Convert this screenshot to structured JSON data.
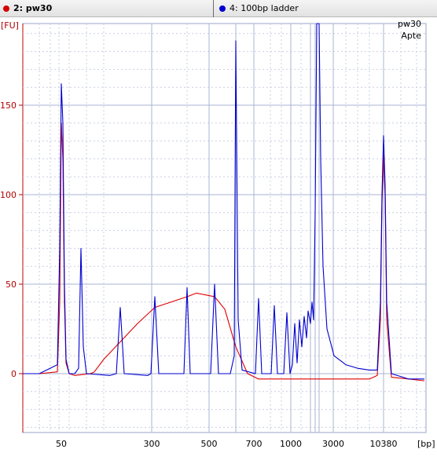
{
  "tabs": [
    {
      "label": "2: pw30",
      "color": "#d40000",
      "selected": true
    },
    {
      "label": "4: 100bp ladder",
      "color": "#0000d0",
      "selected": false
    }
  ],
  "annotations": [
    "pw30",
    "Apte"
  ],
  "chart_data": {
    "type": "line",
    "ylabel": "[FU]",
    "xlabel": "[bp]",
    "ylim": [
      -33,
      198
    ],
    "y_ticks": [
      0,
      50,
      100,
      150
    ],
    "x_ticks": [
      "50",
      "300",
      "500",
      "700",
      "1000",
      "3000",
      "10380"
    ],
    "grid": true,
    "series": [
      {
        "name": "2: pw30",
        "color": "#e00000",
        "points": [
          [
            "35",
            0
          ],
          [
            "45",
            0
          ],
          [
            "48",
            1
          ],
          [
            "49",
            40
          ],
          [
            "50",
            140
          ],
          [
            "51",
            120
          ],
          [
            "52",
            40
          ],
          [
            "53",
            6
          ],
          [
            "55",
            0
          ],
          [
            "60",
            -1
          ],
          [
            "75",
            0
          ],
          [
            "80",
            1
          ],
          [
            "100",
            8
          ],
          [
            "200",
            28
          ],
          [
            "300",
            37
          ],
          [
            "400",
            43
          ],
          [
            "450",
            45
          ],
          [
            "500",
            43
          ],
          [
            "550",
            36
          ],
          [
            "600",
            15
          ],
          [
            "650",
            0
          ],
          [
            "700",
            -3
          ],
          [
            "1000",
            -3
          ],
          [
            "3000",
            -3
          ],
          [
            "8000",
            -3
          ],
          [
            "9500",
            -1
          ],
          [
            "10000",
            30
          ],
          [
            "10200",
            95
          ],
          [
            "10380",
            122
          ],
          [
            "10500",
            100
          ],
          [
            "10700",
            30
          ],
          [
            "11000",
            -2
          ],
          [
            "13000",
            -3
          ],
          [
            "14500",
            -4
          ]
        ]
      },
      {
        "name": "4: 100bp ladder",
        "color": "#0000d0",
        "points": [
          [
            "35",
            0
          ],
          [
            "45",
            0
          ],
          [
            "48",
            5
          ],
          [
            "49",
            70
          ],
          [
            "50",
            162
          ],
          [
            "51",
            140
          ],
          [
            "52",
            50
          ],
          [
            "53",
            8
          ],
          [
            "55",
            0
          ],
          [
            "60",
            0
          ],
          [
            "64",
            3
          ],
          [
            "66",
            70
          ],
          [
            "68",
            15
          ],
          [
            "70",
            0
          ],
          [
            "120",
            -1
          ],
          [
            "140",
            0
          ],
          [
            "150",
            37
          ],
          [
            "160",
            0
          ],
          [
            "250",
            -1
          ],
          [
            "290",
            0
          ],
          [
            "300",
            43
          ],
          [
            "310",
            0
          ],
          [
            "390",
            0
          ],
          [
            "400",
            48
          ],
          [
            "410",
            0
          ],
          [
            "490",
            0
          ],
          [
            "500",
            50
          ],
          [
            "510",
            0
          ],
          [
            "580",
            0
          ],
          [
            "595",
            10
          ],
          [
            "600",
            186
          ],
          [
            "605",
            30
          ],
          [
            "620",
            2
          ],
          [
            "690",
            0
          ],
          [
            "700",
            42
          ],
          [
            "710",
            0
          ],
          [
            "790",
            0
          ],
          [
            "800",
            38
          ],
          [
            "810",
            0
          ],
          [
            "890",
            0
          ],
          [
            "900",
            34
          ],
          [
            "910",
            0
          ],
          [
            "950",
            5
          ],
          [
            "980",
            28
          ],
          [
            "1000",
            6
          ],
          [
            "1050",
            30
          ],
          [
            "1080",
            15
          ],
          [
            "1100",
            32
          ],
          [
            "1150",
            20
          ],
          [
            "1200",
            35
          ],
          [
            "1300",
            28
          ],
          [
            "1400",
            40
          ],
          [
            "1500",
            30
          ],
          [
            "1600",
            90
          ],
          [
            "1800",
            198
          ],
          [
            "2000",
            198
          ],
          [
            "2100",
            120
          ],
          [
            "2300",
            60
          ],
          [
            "2600",
            25
          ],
          [
            "3000",
            10
          ],
          [
            "4000",
            5
          ],
          [
            "6000",
            3
          ],
          [
            "8000",
            2
          ],
          [
            "9500",
            2
          ],
          [
            "10000",
            40
          ],
          [
            "10200",
            100
          ],
          [
            "10380",
            133
          ],
          [
            "10500",
            105
          ],
          [
            "10700",
            40
          ],
          [
            "11000",
            0
          ],
          [
            "13000",
            -3
          ],
          [
            "14500",
            -3
          ]
        ]
      }
    ]
  }
}
